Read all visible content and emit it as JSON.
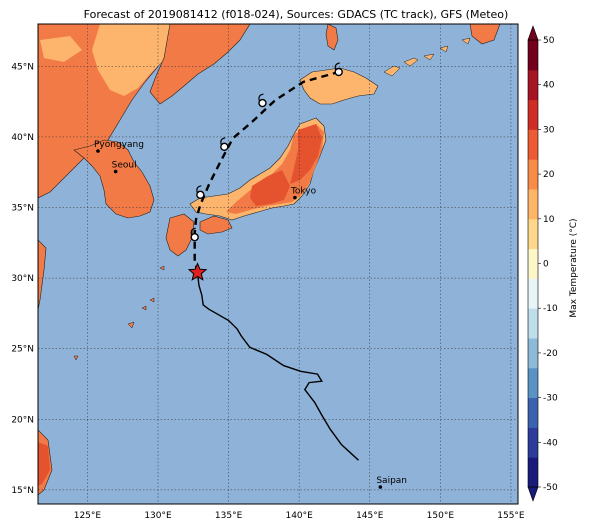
{
  "title": "Forecast of 2019081412 (f018-024), Sources: GDACS (TC track), GFS (Meteo)",
  "map": {
    "lon_range": [
      121.5,
      155.5
    ],
    "lat_range": [
      14,
      48
    ],
    "lon_ticks": [
      {
        "value": 125,
        "label": "125°E"
      },
      {
        "value": 130,
        "label": "130°E"
      },
      {
        "value": 135,
        "label": "135°E"
      },
      {
        "value": 140,
        "label": "140°E"
      },
      {
        "value": 145,
        "label": "145°E"
      },
      {
        "value": 150,
        "label": "150°E"
      },
      {
        "value": 155,
        "label": "155°E"
      }
    ],
    "lat_ticks": [
      {
        "value": 15,
        "label": "15°N"
      },
      {
        "value": 20,
        "label": "20°N"
      },
      {
        "value": 25,
        "label": "25°N"
      },
      {
        "value": 30,
        "label": "30°N"
      },
      {
        "value": 35,
        "label": "35°N"
      },
      {
        "value": 40,
        "label": "40°N"
      },
      {
        "value": 45,
        "label": "45°N"
      }
    ],
    "cities": [
      {
        "name": "Pyongyang",
        "lon": 125.75,
        "lat": 39.0
      },
      {
        "name": "Seoul",
        "lon": 127.0,
        "lat": 37.55
      },
      {
        "name": "Tokyo",
        "lon": 139.7,
        "lat": 35.7
      },
      {
        "name": "Saipan",
        "lon": 145.75,
        "lat": 15.2
      }
    ],
    "past_track": [
      [
        144.2,
        17.1
      ],
      [
        143.0,
        18.2
      ],
      [
        142.2,
        19.3
      ],
      [
        141.6,
        20.3
      ],
      [
        141.1,
        21.2
      ],
      [
        140.4,
        22.1
      ],
      [
        140.7,
        22.6
      ],
      [
        141.6,
        22.7
      ],
      [
        141.3,
        23.2
      ],
      [
        140.1,
        23.4
      ],
      [
        138.9,
        23.8
      ],
      [
        137.7,
        24.6
      ],
      [
        136.5,
        25.1
      ],
      [
        135.9,
        25.9
      ],
      [
        135.6,
        26.4
      ],
      [
        135.0,
        27.0
      ],
      [
        134.3,
        27.4
      ],
      [
        133.6,
        27.8
      ],
      [
        133.2,
        28.1
      ],
      [
        133.1,
        28.8
      ],
      [
        132.9,
        29.5
      ],
      [
        132.8,
        30.4
      ]
    ],
    "forecast_track": [
      [
        132.8,
        30.4
      ],
      [
        132.6,
        31.3
      ],
      [
        132.6,
        32.4
      ],
      [
        132.6,
        33.2
      ],
      [
        132.7,
        34.2
      ],
      [
        133.0,
        35.2
      ],
      [
        133.6,
        36.6
      ],
      [
        134.4,
        38.2
      ],
      [
        135.3,
        39.9
      ],
      [
        136.7,
        41.1
      ],
      [
        138.3,
        42.6
      ],
      [
        140.3,
        43.9
      ],
      [
        142.8,
        44.6
      ]
    ],
    "current_position": {
      "lon": 132.8,
      "lat": 30.4
    },
    "forecast_points": [
      {
        "lon": 132.6,
        "lat": 32.9
      },
      {
        "lon": 133.0,
        "lat": 35.9
      },
      {
        "lon": 134.7,
        "lat": 39.3
      },
      {
        "lon": 137.4,
        "lat": 42.4
      },
      {
        "lon": 142.8,
        "lat": 44.6
      }
    ]
  },
  "colorbar": {
    "label": "Max Temperature (°C)",
    "min": -50,
    "max": 50,
    "ticks": [
      50,
      40,
      30,
      20,
      10,
      0,
      -10,
      -20,
      -30,
      -40,
      -50
    ],
    "colors": [
      "#1a1a7a",
      "#2d3b9a",
      "#3a62ae",
      "#5b92c4",
      "#8ebad8",
      "#c0ddec",
      "#e8f4f8",
      "#fdf6c8",
      "#fed78c",
      "#fdb567",
      "#f88b48",
      "#ec5b33",
      "#cf2e26",
      "#a51526",
      "#73001c"
    ]
  },
  "colors": {
    "ocean": "#8fb2d8",
    "land_main": "#f17a46",
    "land_warm": "#e5522e",
    "land_cool": "#fdb46c"
  }
}
